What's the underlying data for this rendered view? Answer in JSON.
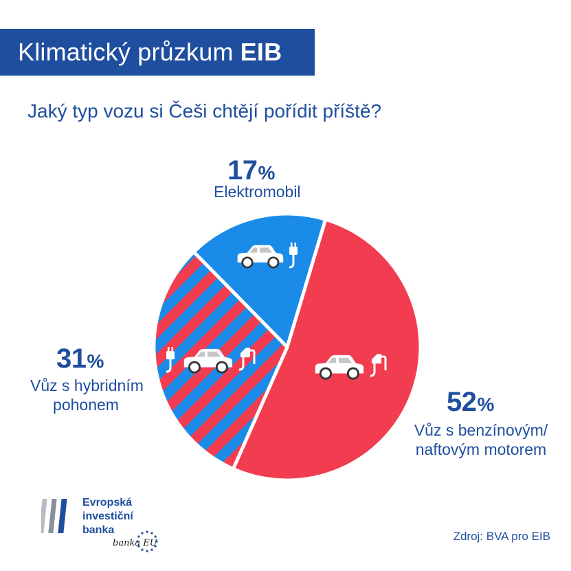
{
  "header": {
    "title_prefix": "Klimatický průzkum",
    "title_bold": "EIB"
  },
  "chart_data": {
    "type": "pie",
    "title": "Jaký typ vozu si Češi chtějí pořídit příště?",
    "slices": [
      {
        "label": "Elektromobil",
        "value": 17,
        "color": "#1a8be8",
        "pattern": "solid",
        "icon": "electric-car-icon"
      },
      {
        "label_lines": [
          "Vůz s benzínovým/",
          "naftovým motorem"
        ],
        "value": 52,
        "color": "#f23d50",
        "pattern": "solid",
        "icon": "fuel-car-icon"
      },
      {
        "label_lines": [
          "Vůz s hybridním",
          "pohonem"
        ],
        "value": 31,
        "color": "#f23d50",
        "pattern": "blue-red-stripes",
        "icon": "hybrid-car-icon"
      }
    ],
    "value_suffix": "%"
  },
  "labels": {
    "electric": {
      "value": "17",
      "sign": "%",
      "line1": "Elektromobil"
    },
    "fuel": {
      "value": "52",
      "sign": "%",
      "line1": "Vůz s benzínovým/",
      "line2": "naftovým motorem"
    },
    "hybrid": {
      "value": "31",
      "sign": "%",
      "line1": "Vůz s hybridním",
      "line2": "pohonem"
    }
  },
  "footer": {
    "bank_lines": [
      "Evropská",
      "investiční",
      "banka"
    ],
    "bank_signature": "banka EU",
    "source": "Zdroj: BVA pro EIB"
  },
  "colors": {
    "brand_blue": "#1f4e9e",
    "electric_blue": "#1a8be8",
    "red": "#f23d50"
  }
}
